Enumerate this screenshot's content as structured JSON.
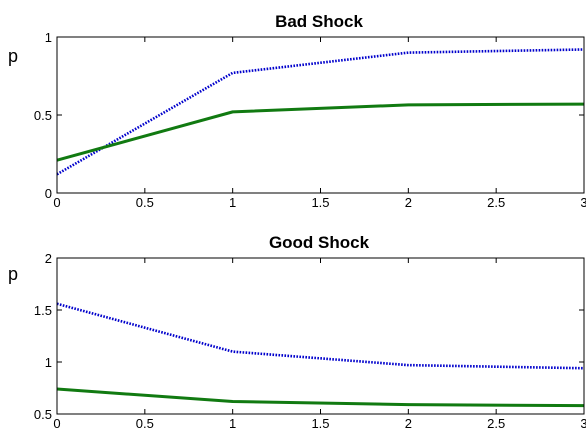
{
  "chart_data": [
    {
      "type": "line",
      "title": "Bad Shock",
      "xlabel": "",
      "ylabel": "p",
      "xlim": [
        0,
        3
      ],
      "ylim": [
        0,
        1
      ],
      "xticks": [
        "0",
        "0.5",
        "1",
        "1.5",
        "2",
        "2.5",
        "3"
      ],
      "yticks": [
        "0",
        "0.5",
        "1"
      ],
      "grid": false,
      "series": [
        {
          "style": "dotted",
          "color": "#0000cc",
          "x": [
            0,
            1,
            2,
            3
          ],
          "values": [
            0.12,
            0.77,
            0.9,
            0.92
          ]
        },
        {
          "style": "solid",
          "color": "#117a11",
          "x": [
            0,
            1,
            2,
            3
          ],
          "values": [
            0.21,
            0.52,
            0.565,
            0.57
          ]
        }
      ]
    },
    {
      "type": "line",
      "title": "Good Shock",
      "xlabel": "",
      "ylabel": "p",
      "xlim": [
        0,
        3
      ],
      "ylim": [
        0.5,
        2
      ],
      "xticks": [
        "0",
        "0.5",
        "1",
        "1.5",
        "2",
        "2.5",
        "3"
      ],
      "yticks": [
        "0.5",
        "1",
        "1.5",
        "2"
      ],
      "grid": false,
      "series": [
        {
          "style": "dotted",
          "color": "#0000cc",
          "x": [
            0,
            1,
            2,
            3
          ],
          "values": [
            1.56,
            1.1,
            0.97,
            0.94
          ]
        },
        {
          "style": "solid",
          "color": "#117a11",
          "x": [
            0,
            1,
            2,
            3
          ],
          "values": [
            0.74,
            0.62,
            0.59,
            0.58
          ]
        }
      ]
    }
  ]
}
